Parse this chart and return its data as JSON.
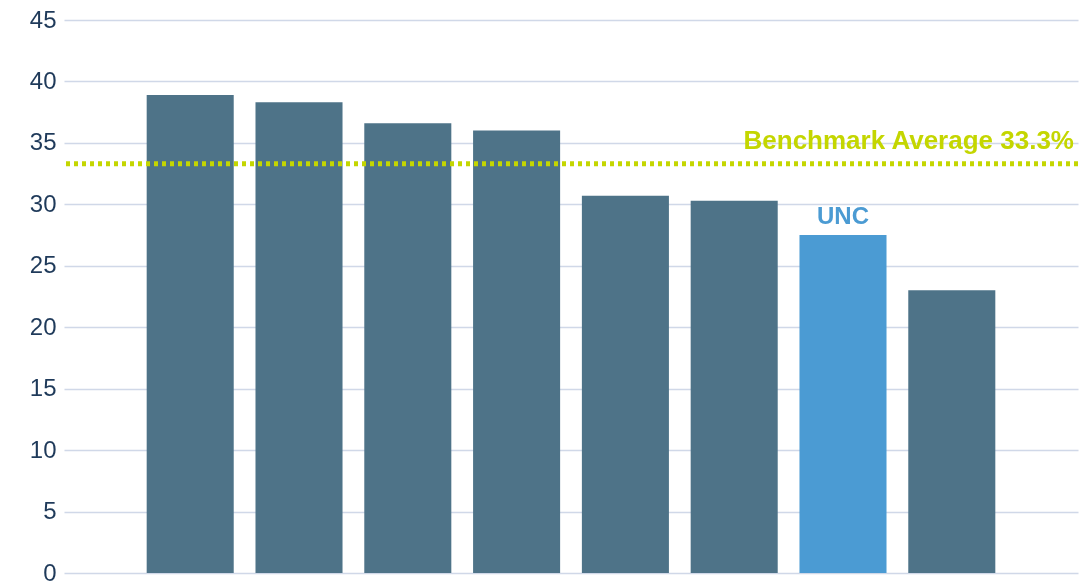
{
  "chart_data": {
    "type": "bar",
    "categories": [
      null,
      null,
      null,
      null,
      null,
      null,
      null,
      null
    ],
    "values": [
      38.9,
      38.3,
      36.6,
      36.0,
      30.7,
      30.3,
      27.5,
      23.0
    ],
    "colors": [
      "#4e7388",
      "#4e7388",
      "#4e7388",
      "#4e7388",
      "#4e7388",
      "#4e7388",
      "#4b9bd3",
      "#4e7388"
    ],
    "value_labels": [
      null,
      null,
      null,
      null,
      null,
      null,
      "UNC",
      null
    ],
    "ylim": [
      0,
      45
    ],
    "yticks": [
      0,
      5,
      10,
      15,
      20,
      25,
      30,
      35,
      40,
      45
    ],
    "grid": "y",
    "tick_labels": "y",
    "ref_lines": [
      {
        "axis": "y",
        "value": 33.3,
        "label": "Benchmark Average 33.3%",
        "color": "#c4d600",
        "line_style": "dotted"
      }
    ]
  }
}
